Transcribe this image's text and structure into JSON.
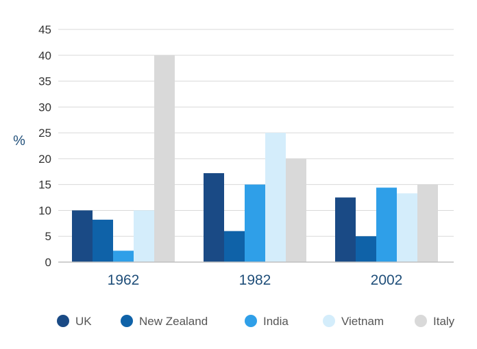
{
  "chart_data": {
    "type": "bar",
    "ylabel": "%",
    "xlabel": "",
    "ylim": [
      0,
      45
    ],
    "yticks": [
      0,
      5,
      10,
      15,
      20,
      25,
      30,
      35,
      40,
      45
    ],
    "grid": true,
    "legend_position": "bottom",
    "categories": [
      "1962",
      "1982",
      "2002"
    ],
    "series": [
      {
        "name": "UK",
        "color": "#1a4a85",
        "values": [
          10,
          17.2,
          12.5
        ]
      },
      {
        "name": "New Zealand",
        "color": "#0f62a8",
        "values": [
          8.2,
          6,
          5
        ]
      },
      {
        "name": "India",
        "color": "#2f9fe8",
        "values": [
          2.2,
          15,
          14.4
        ]
      },
      {
        "name": "Vietnam",
        "color": "#d4edfb",
        "values": [
          10,
          25,
          13.3
        ]
      },
      {
        "name": "Italy",
        "color": "#d9d9d9",
        "values": [
          40,
          20,
          15
        ]
      }
    ]
  }
}
